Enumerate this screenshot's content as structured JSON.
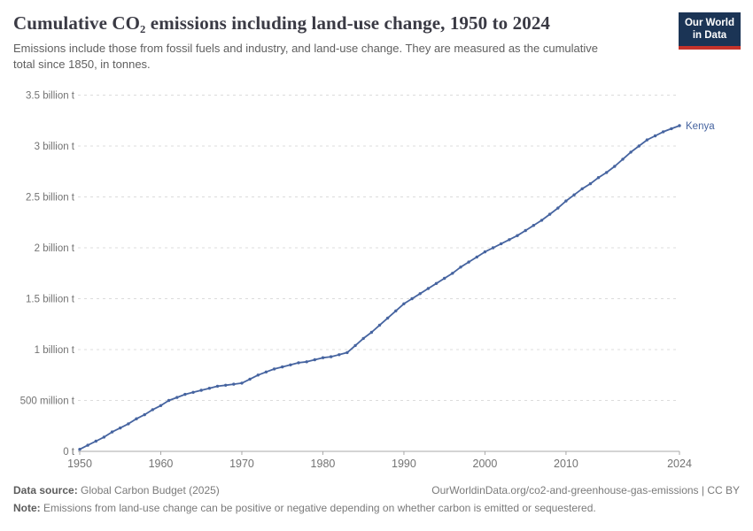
{
  "header": {
    "title": "Cumulative CO₂ emissions including land-use change, 1950 to 2024",
    "subtitle": "Emissions include those from fossil fuels and industry, and land-use change. They are measured as the cumulative total since 1850, in tonnes.",
    "logo": {
      "line1": "Our World",
      "line2": "in Data",
      "bg_color": "#1b3455",
      "accent_color": "#c5332b"
    }
  },
  "chart_data": {
    "type": "line",
    "title": "Cumulative CO₂ emissions including land-use change, 1950 to 2024",
    "entity": "Kenya",
    "end_label": "Kenya",
    "unit": "billion tonnes",
    "grid": true,
    "legend_position": "end-of-line",
    "xlim": [
      1950,
      2024
    ],
    "ylim": [
      0,
      3.5
    ],
    "x_ticks": [
      1950,
      1960,
      1970,
      1980,
      1990,
      2000,
      2010,
      2024
    ],
    "y_ticks": [
      {
        "value": 0,
        "label": "0 t"
      },
      {
        "value": 0.5,
        "label": "500 million t"
      },
      {
        "value": 1,
        "label": "1 billion t"
      },
      {
        "value": 1.5,
        "label": "1.5 billion t"
      },
      {
        "value": 2,
        "label": "2 billion t"
      },
      {
        "value": 2.5,
        "label": "2.5 billion t"
      },
      {
        "value": 3,
        "label": "3 billion t"
      },
      {
        "value": 3.5,
        "label": "3.5 billion t"
      }
    ],
    "x": [
      1950,
      1951,
      1952,
      1953,
      1954,
      1955,
      1956,
      1957,
      1958,
      1959,
      1960,
      1961,
      1962,
      1963,
      1964,
      1965,
      1966,
      1967,
      1968,
      1969,
      1970,
      1971,
      1972,
      1973,
      1974,
      1975,
      1976,
      1977,
      1978,
      1979,
      1980,
      1981,
      1982,
      1983,
      1984,
      1985,
      1986,
      1987,
      1988,
      1989,
      1990,
      1991,
      1992,
      1993,
      1994,
      1995,
      1996,
      1997,
      1998,
      1999,
      2000,
      2001,
      2002,
      2003,
      2004,
      2005,
      2006,
      2007,
      2008,
      2009,
      2010,
      2011,
      2012,
      2013,
      2014,
      2015,
      2016,
      2017,
      2018,
      2019,
      2020,
      2021,
      2022,
      2023,
      2024
    ],
    "series": [
      {
        "name": "Kenya",
        "color": "#4664a0",
        "values_unit": "billion tonnes",
        "values": [
          0.02,
          0.06,
          0.1,
          0.14,
          0.19,
          0.23,
          0.27,
          0.32,
          0.36,
          0.41,
          0.45,
          0.5,
          0.53,
          0.56,
          0.58,
          0.6,
          0.62,
          0.64,
          0.65,
          0.66,
          0.67,
          0.71,
          0.75,
          0.78,
          0.81,
          0.83,
          0.85,
          0.87,
          0.88,
          0.9,
          0.92,
          0.93,
          0.95,
          0.97,
          1.04,
          1.11,
          1.17,
          1.24,
          1.31,
          1.38,
          1.45,
          1.5,
          1.55,
          1.6,
          1.65,
          1.7,
          1.75,
          1.81,
          1.86,
          1.91,
          1.96,
          2.0,
          2.04,
          2.08,
          2.12,
          2.17,
          2.22,
          2.27,
          2.33,
          2.39,
          2.46,
          2.52,
          2.58,
          2.63,
          2.69,
          2.74,
          2.8,
          2.87,
          2.94,
          3.0,
          3.06,
          3.1,
          3.14,
          3.17,
          3.2
        ]
      }
    ],
    "style": {
      "grid_color": "#dcdcdc",
      "axis_color": "#a8a8a8",
      "tick_label_color": "#737373"
    }
  },
  "footer": {
    "source_label": "Data source:",
    "source_value": " Global Carbon Budget (2025)",
    "link": "OurWorldinData.org/co2-and-greenhouse-gas-emissions | CC BY",
    "note_label": "Note:",
    "note_value": " Emissions from land-use change can be positive or negative depending on whether carbon is emitted or sequestered."
  }
}
